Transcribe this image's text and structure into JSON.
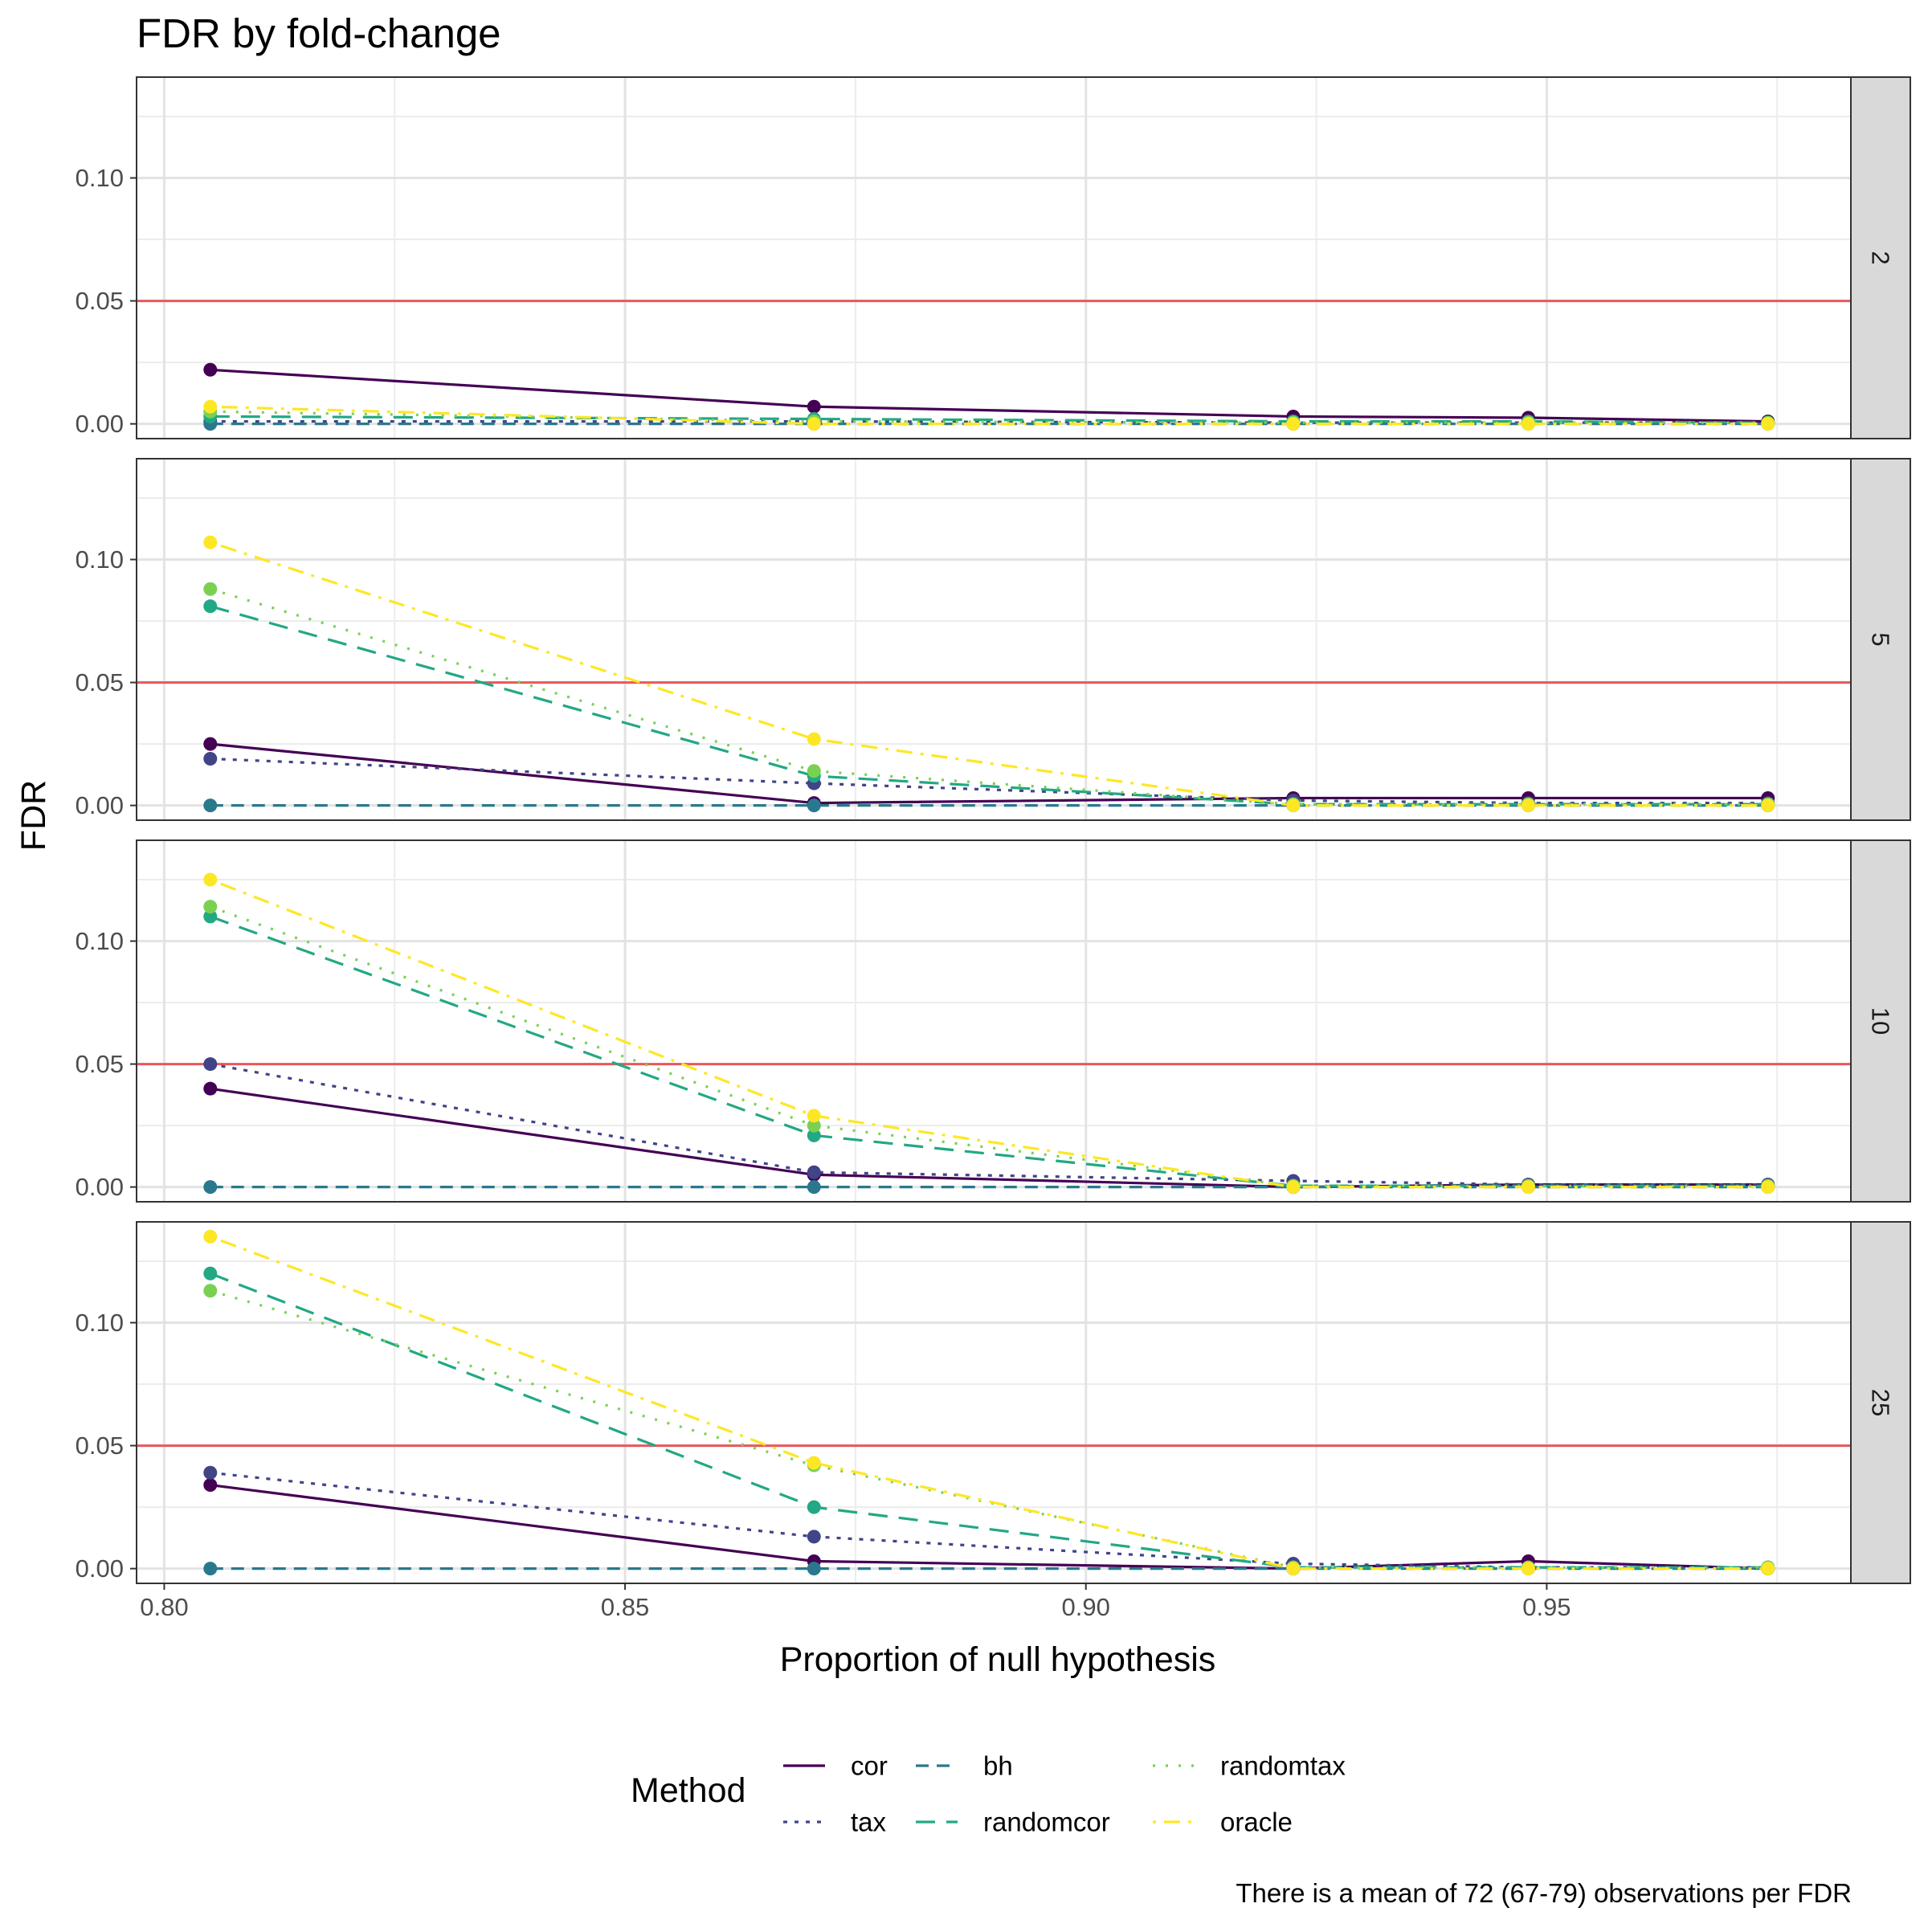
{
  "chart_data": {
    "type": "line",
    "title": "FDR by fold-change",
    "xlabel": "Proportion of null hypothesis",
    "ylabel": "FDR",
    "caption": "There is a mean of 72 (67-79) observations per FDR",
    "legend_title": "Method",
    "legend_position": "bottom",
    "xlim": [
      0.797,
      0.983
    ],
    "ylim": [
      -0.006,
      0.141
    ],
    "x_ticks": [
      0.8,
      0.85,
      0.9,
      0.95
    ],
    "x_tick_labels": [
      "0.80",
      "0.85",
      "0.90",
      "0.95"
    ],
    "y_ticks": [
      0.0,
      0.05,
      0.1
    ],
    "y_tick_labels": [
      "0.00",
      "0.05",
      "0.10"
    ],
    "reference_line": {
      "y": 0.05,
      "color": "#e8585a"
    },
    "grid": true,
    "x": [
      0.805,
      0.8705,
      0.9225,
      0.948,
      0.974
    ],
    "methods": [
      {
        "name": "cor",
        "color": "#440154",
        "dash": "solid"
      },
      {
        "name": "tax",
        "color": "#414487",
        "dash": "dotted"
      },
      {
        "name": "bh",
        "color": "#2a788e",
        "dash": "dashed"
      },
      {
        "name": "randomcor",
        "color": "#22a884",
        "dash": "longdash"
      },
      {
        "name": "randomtax",
        "color": "#7ad151",
        "dash": "dotted-sparse"
      },
      {
        "name": "oracle",
        "color": "#fde725",
        "dash": "dotdash"
      }
    ],
    "panels": [
      {
        "label": "2",
        "series": [
          {
            "name": "cor",
            "values": [
              0.022,
              0.007,
              0.003,
              0.0025,
              0.001
            ]
          },
          {
            "name": "tax",
            "values": [
              0.001,
              0.001,
              0.0005,
              0.0005,
              0.0005
            ]
          },
          {
            "name": "bh",
            "values": [
              0.0,
              0.0,
              0.0,
              0.0,
              0.0
            ]
          },
          {
            "name": "randomcor",
            "values": [
              0.003,
              0.002,
              0.001,
              0.001,
              0.0005
            ]
          },
          {
            "name": "randomtax",
            "values": [
              0.005,
              0.001,
              0.0005,
              0.0005,
              0.0005
            ]
          },
          {
            "name": "oracle",
            "values": [
              0.007,
              0.0,
              0.0,
              0.0,
              0.0
            ]
          }
        ]
      },
      {
        "label": "5",
        "series": [
          {
            "name": "cor",
            "values": [
              0.025,
              0.001,
              0.003,
              0.003,
              0.003
            ]
          },
          {
            "name": "tax",
            "values": [
              0.019,
              0.009,
              0.002,
              0.001,
              0.001
            ]
          },
          {
            "name": "bh",
            "values": [
              0.0,
              0.0,
              0.0,
              0.0,
              0.0
            ]
          },
          {
            "name": "randomcor",
            "values": [
              0.081,
              0.012,
              0.0005,
              0.0005,
              0.0005
            ]
          },
          {
            "name": "randomtax",
            "values": [
              0.088,
              0.014,
              0.0005,
              0.0005,
              0.0005
            ]
          },
          {
            "name": "oracle",
            "values": [
              0.107,
              0.027,
              0.0,
              0.0,
              0.0
            ]
          }
        ]
      },
      {
        "label": "10",
        "series": [
          {
            "name": "cor",
            "values": [
              0.04,
              0.005,
              0.0,
              0.001,
              0.001
            ]
          },
          {
            "name": "tax",
            "values": [
              0.05,
              0.006,
              0.0025,
              0.001,
              0.001
            ]
          },
          {
            "name": "bh",
            "values": [
              0.0,
              0.0,
              0.0,
              0.0,
              0.0
            ]
          },
          {
            "name": "randomcor",
            "values": [
              0.11,
              0.021,
              0.0005,
              0.0005,
              0.0005
            ]
          },
          {
            "name": "randomtax",
            "values": [
              0.114,
              0.025,
              0.0005,
              0.0005,
              0.0005
            ]
          },
          {
            "name": "oracle",
            "values": [
              0.125,
              0.029,
              0.0,
              0.0,
              0.0
            ]
          }
        ]
      },
      {
        "label": "25",
        "series": [
          {
            "name": "cor",
            "values": [
              0.034,
              0.003,
              0.0,
              0.003,
              0.0
            ]
          },
          {
            "name": "tax",
            "values": [
              0.039,
              0.013,
              0.002,
              0.0005,
              0.0005
            ]
          },
          {
            "name": "bh",
            "values": [
              0.0,
              0.0,
              0.0,
              0.0,
              0.0
            ]
          },
          {
            "name": "randomcor",
            "values": [
              0.12,
              0.025,
              0.0005,
              0.0005,
              0.0005
            ]
          },
          {
            "name": "randomtax",
            "values": [
              0.113,
              0.042,
              0.0005,
              0.0005,
              0.0005
            ]
          },
          {
            "name": "oracle",
            "values": [
              0.135,
              0.043,
              0.0,
              0.0,
              0.0
            ]
          }
        ]
      }
    ]
  }
}
